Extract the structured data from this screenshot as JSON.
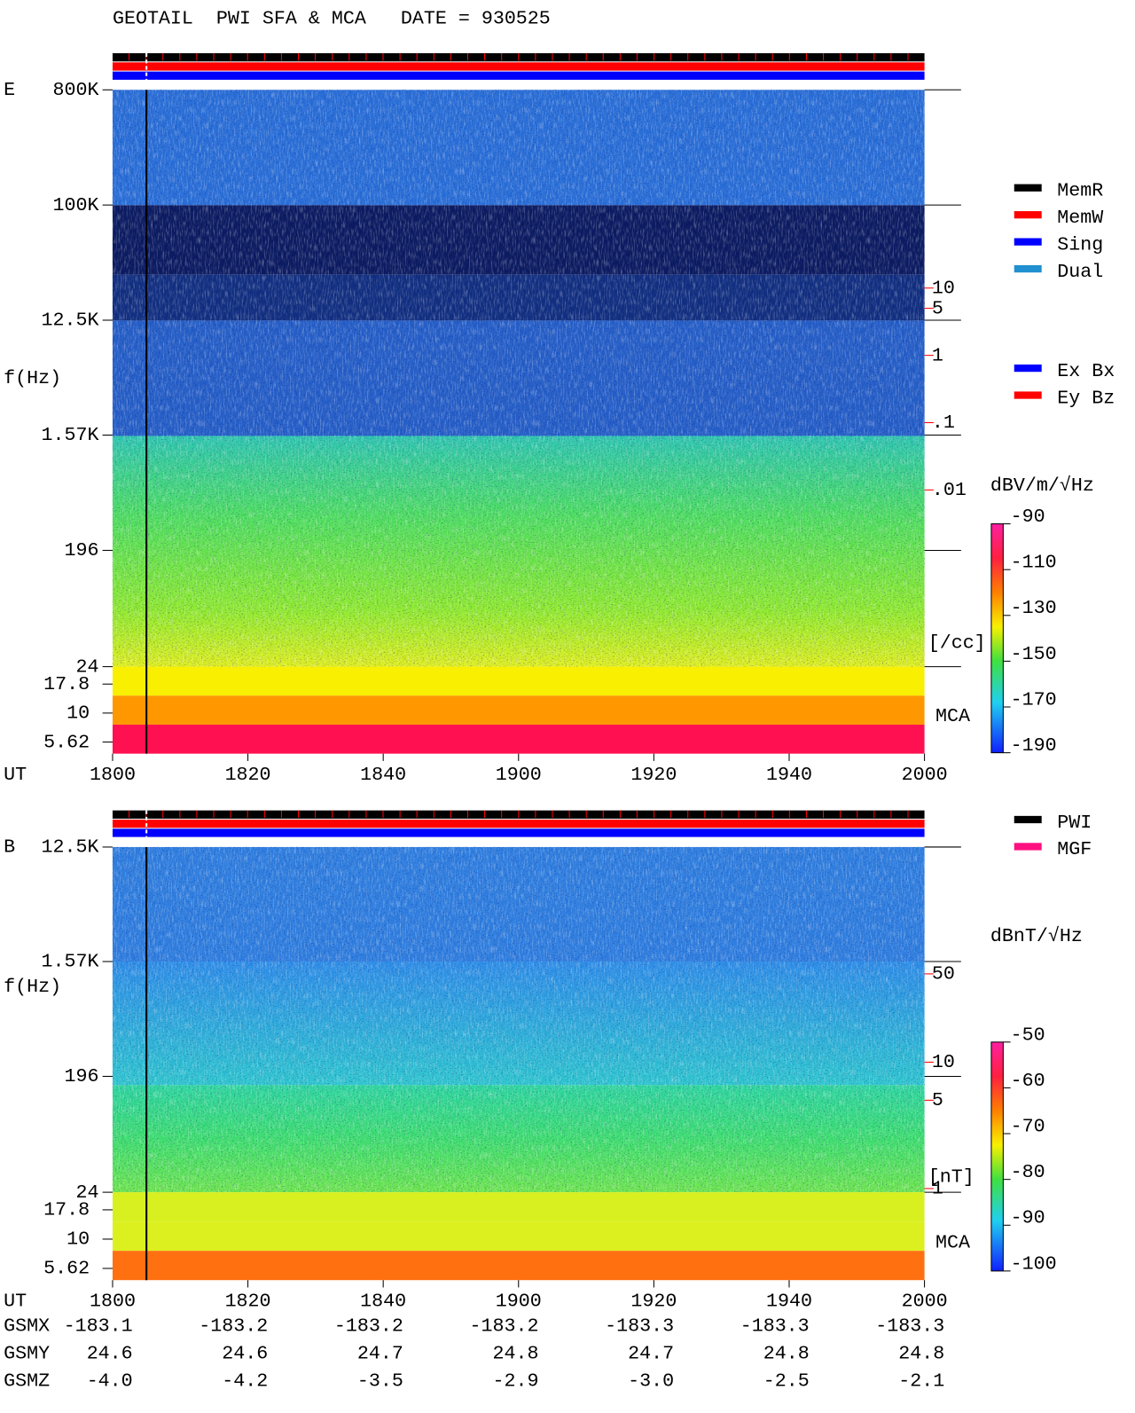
{
  "chart_data": [
    {
      "type": "spectrogram",
      "title": "GEOTAIL  PWI SFA & MCA   DATE = 930525",
      "panel_label": "E",
      "y_label": "f(Hz)",
      "x_label": "UT",
      "yscale": "log",
      "categories": [
        "1800",
        "1820",
        "1840",
        "1900",
        "1920",
        "1940",
        "2000"
      ],
      "ylim": [
        24,
        800000
      ],
      "yticks": [
        {
          "value": 800000,
          "label": "800K"
        },
        {
          "value": 100000,
          "label": "100K"
        },
        {
          "value": 12500,
          "label": "12.5K"
        },
        {
          "value": 1570,
          "label": "1.57K"
        },
        196,
        24
      ],
      "mca_label": "MCA",
      "mca_ticks": [
        17.8,
        10,
        5.62
      ],
      "y2lim": [
        0.01,
        10
      ],
      "y2color": "#ff0000",
      "y2ticks": [
        10,
        5,
        1,
        {
          "value": 0.1,
          "label": ".1"
        },
        {
          "value": 0.01,
          "label": ".01"
        }
      ],
      "y2_label": "[/cc]",
      "colorbar": {
        "label": "dBV/m/√Hz",
        "lim": [
          -190,
          -90
        ],
        "ticks": [
          -90,
          -110,
          -130,
          -150,
          -170,
          -190
        ]
      },
      "legend": [
        {
          "name": "MemR",
          "color": "#000000"
        },
        {
          "name": "MemW",
          "color": "#ff0000"
        },
        {
          "name": "Sing",
          "color": "#0000ff"
        },
        {
          "name": "Dual",
          "color": "#2090d0"
        }
      ],
      "legend2": [
        {
          "name": "Ex Bx",
          "color": "#0000ff"
        },
        {
          "name": "Ey Bz",
          "color": "#ff0000"
        }
      ]
    },
    {
      "type": "spectrogram",
      "panel_label": "B",
      "y_label": "f(Hz)",
      "x_label": "UT",
      "yscale": "log",
      "categories": [
        "1800",
        "1820",
        "1840",
        "1900",
        "1920",
        "1940",
        "2000"
      ],
      "ylim": [
        24,
        12500
      ],
      "yticks": [
        {
          "value": 12500,
          "label": "12.5K"
        },
        {
          "value": 1570,
          "label": "1.57K"
        },
        196,
        24
      ],
      "mca_label": "MCA",
      "mca_ticks": [
        17.8,
        10,
        5.62
      ],
      "y2lim": [
        1,
        50
      ],
      "y2color": "#ff0000",
      "y2ticks": [
        50,
        10,
        5,
        1
      ],
      "y2_label": "[nT]",
      "colorbar": {
        "label": "dBnT/√Hz",
        "lim": [
          -100,
          -50
        ],
        "ticks": [
          -50,
          -60,
          -70,
          -80,
          -90,
          -100
        ]
      },
      "legend": [
        {
          "name": "PWI",
          "color": "#000000"
        },
        {
          "name": "MGF",
          "color": "#ff1080"
        }
      ]
    }
  ],
  "orbit": {
    "labels": [
      "GSMX",
      "GSMY",
      "GSMZ"
    ],
    "rows": [
      [
        "-183.1",
        "-183.2",
        "-183.2",
        "-183.2",
        "-183.3",
        "-183.3",
        "-183.3"
      ],
      [
        "24.6",
        "24.6",
        "24.7",
        "24.8",
        "24.7",
        "24.8",
        "24.8"
      ],
      [
        "-4.0",
        "-4.2",
        "-3.5",
        "-2.9",
        "-3.0",
        "-2.5",
        "-2.1"
      ]
    ]
  }
}
